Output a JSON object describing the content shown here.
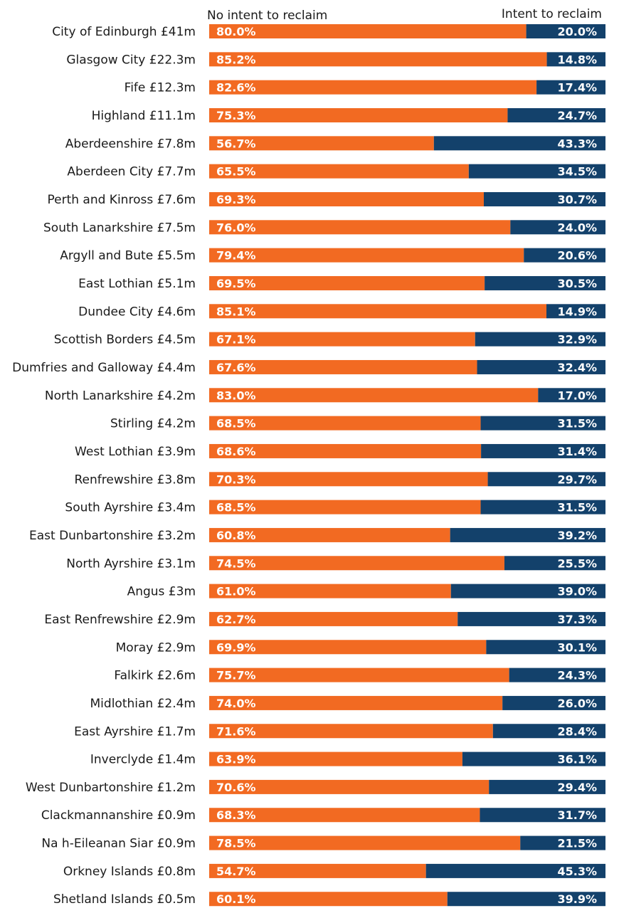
{
  "chart_data": {
    "type": "bar",
    "orientation": "horizontal",
    "stacked": true,
    "normalized_to_percent": true,
    "title": "",
    "xlabel": "",
    "ylabel": "",
    "xlim": [
      0,
      100
    ],
    "grid": false,
    "legend": {
      "placement": "top",
      "entries": [
        "No intent to reclaim",
        "Intent to reclaim"
      ]
    },
    "colors": {
      "No intent to reclaim": "#F26A22",
      "Intent to reclaim": "#13416B",
      "value_label": "#FFFFFF",
      "category_label": "#1A1A1A"
    },
    "categories": [
      "City of Edinburgh £41m",
      "Glasgow City £22.3m",
      "Fife £12.3m",
      "Highland £11.1m",
      "Aberdeenshire £7.8m",
      "Aberdeen City £7.7m",
      "Perth and Kinross £7.6m",
      "South Lanarkshire £7.5m",
      "Argyll and Bute £5.5m",
      "East Lothian £5.1m",
      "Dundee City £4.6m",
      "Scottish Borders £4.5m",
      "Dumfries and Galloway £4.4m",
      "North Lanarkshire £4.2m",
      "Stirling £4.2m",
      "West Lothian £3.9m",
      "Renfrewshire £3.8m",
      "South Ayrshire £3.4m",
      "East Dunbartonshire £3.2m",
      "North Ayrshire £3.1m",
      "Angus £3m",
      "East Renfrewshire £2.9m",
      "Moray £2.9m",
      "Falkirk £2.6m",
      "Midlothian £2.4m",
      "East Ayrshire £1.7m",
      "Inverclyde £1.4m",
      "West Dunbartonshire £1.2m",
      "Clackmannanshire £0.9m",
      "Na h-Eileanan Siar £0.9m",
      "Orkney Islands £0.8m",
      "Shetland Islands £0.5m"
    ],
    "series": [
      {
        "name": "No intent to reclaim",
        "values": [
          80.0,
          85.2,
          82.6,
          75.3,
          56.7,
          65.5,
          69.3,
          76.0,
          79.4,
          69.5,
          85.1,
          67.1,
          67.6,
          83.0,
          68.5,
          68.6,
          70.3,
          68.5,
          60.8,
          74.5,
          61.0,
          62.7,
          69.9,
          75.7,
          74.0,
          71.6,
          63.9,
          70.6,
          68.3,
          78.5,
          54.7,
          60.1
        ]
      },
      {
        "name": "Intent to reclaim",
        "values": [
          20.0,
          14.8,
          17.4,
          24.7,
          43.3,
          34.5,
          30.7,
          24.0,
          20.6,
          30.5,
          14.9,
          32.9,
          32.4,
          17.0,
          31.5,
          31.4,
          29.7,
          31.5,
          39.2,
          25.5,
          39.0,
          37.3,
          30.1,
          24.3,
          26.0,
          28.4,
          36.1,
          29.4,
          31.7,
          21.5,
          45.3,
          39.9
        ]
      }
    ],
    "value_label_format": "{v:.1f}%"
  }
}
